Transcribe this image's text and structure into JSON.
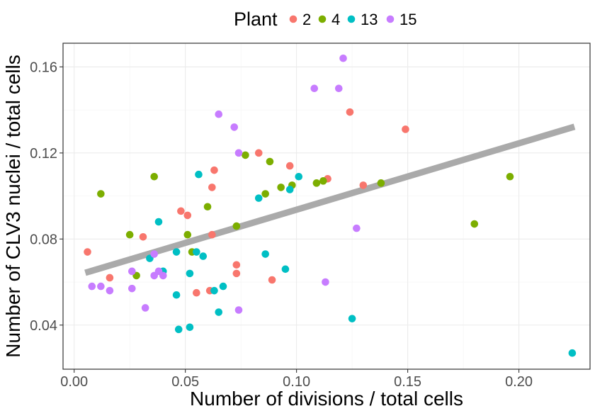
{
  "chart_data": {
    "type": "scatter",
    "title": "",
    "xlabel": "Number of divisions / total cells",
    "ylabel": "Number of CLV3 nuclei / total cells",
    "xlim": [
      -0.005,
      0.232
    ],
    "ylim": [
      0.0195,
      0.171
    ],
    "x_ticks": [
      0.0,
      0.05,
      0.1,
      0.15,
      0.2
    ],
    "x_tick_labels": [
      "0.00",
      "0.05",
      "0.10",
      "0.15",
      "0.20"
    ],
    "y_ticks": [
      0.04,
      0.08,
      0.12,
      0.16
    ],
    "y_tick_labels": [
      "0.04",
      "0.08",
      "0.12",
      "0.16"
    ],
    "grid": true,
    "legend": {
      "title": "Plant",
      "position": "top"
    },
    "series": [
      {
        "name": "2",
        "color": "#F8766D",
        "points": [
          [
            0.006,
            0.074
          ],
          [
            0.016,
            0.062
          ],
          [
            0.031,
            0.081
          ],
          [
            0.048,
            0.093
          ],
          [
            0.051,
            0.091
          ],
          [
            0.055,
            0.055
          ],
          [
            0.061,
            0.056
          ],
          [
            0.062,
            0.082
          ],
          [
            0.062,
            0.104
          ],
          [
            0.063,
            0.112
          ],
          [
            0.073,
            0.064
          ],
          [
            0.073,
            0.068
          ],
          [
            0.083,
            0.12
          ],
          [
            0.089,
            0.061
          ],
          [
            0.097,
            0.114
          ],
          [
            0.114,
            0.108
          ],
          [
            0.124,
            0.139
          ],
          [
            0.13,
            0.105
          ],
          [
            0.149,
            0.131
          ]
        ]
      },
      {
        "name": "4",
        "color": "#7CAE00",
        "points": [
          [
            0.012,
            0.101
          ],
          [
            0.025,
            0.082
          ],
          [
            0.028,
            0.063
          ],
          [
            0.036,
            0.109
          ],
          [
            0.051,
            0.082
          ],
          [
            0.053,
            0.074
          ],
          [
            0.06,
            0.095
          ],
          [
            0.073,
            0.086
          ],
          [
            0.077,
            0.119
          ],
          [
            0.086,
            0.101
          ],
          [
            0.088,
            0.116
          ],
          [
            0.093,
            0.104
          ],
          [
            0.098,
            0.105
          ],
          [
            0.109,
            0.106
          ],
          [
            0.112,
            0.107
          ],
          [
            0.138,
            0.106
          ],
          [
            0.18,
            0.087
          ],
          [
            0.196,
            0.109
          ]
        ]
      },
      {
        "name": "13",
        "color": "#00BFC4",
        "points": [
          [
            0.034,
            0.071
          ],
          [
            0.038,
            0.088
          ],
          [
            0.04,
            0.065
          ],
          [
            0.046,
            0.074
          ],
          [
            0.046,
            0.054
          ],
          [
            0.047,
            0.038
          ],
          [
            0.052,
            0.064
          ],
          [
            0.052,
            0.039
          ],
          [
            0.055,
            0.074
          ],
          [
            0.056,
            0.11
          ],
          [
            0.058,
            0.072
          ],
          [
            0.063,
            0.056
          ],
          [
            0.065,
            0.046
          ],
          [
            0.067,
            0.058
          ],
          [
            0.083,
            0.099
          ],
          [
            0.086,
            0.073
          ],
          [
            0.095,
            0.066
          ],
          [
            0.097,
            0.103
          ],
          [
            0.101,
            0.109
          ],
          [
            0.125,
            0.043
          ],
          [
            0.224,
            0.027
          ]
        ]
      },
      {
        "name": "15",
        "color": "#C77CFF",
        "points": [
          [
            0.008,
            0.058
          ],
          [
            0.012,
            0.058
          ],
          [
            0.016,
            0.056
          ],
          [
            0.026,
            0.057
          ],
          [
            0.026,
            0.065
          ],
          [
            0.032,
            0.048
          ],
          [
            0.036,
            0.073
          ],
          [
            0.036,
            0.063
          ],
          [
            0.038,
            0.065
          ],
          [
            0.04,
            0.063
          ],
          [
            0.065,
            0.138
          ],
          [
            0.072,
            0.132
          ],
          [
            0.074,
            0.12
          ],
          [
            0.074,
            0.047
          ],
          [
            0.108,
            0.15
          ],
          [
            0.113,
            0.06
          ],
          [
            0.119,
            0.15
          ],
          [
            0.121,
            0.164
          ],
          [
            0.127,
            0.085
          ]
        ]
      }
    ],
    "trend_line": {
      "color": "#AAAAAA",
      "x": [
        0.005,
        0.225
      ],
      "y": [
        0.0643,
        0.1322
      ]
    }
  }
}
